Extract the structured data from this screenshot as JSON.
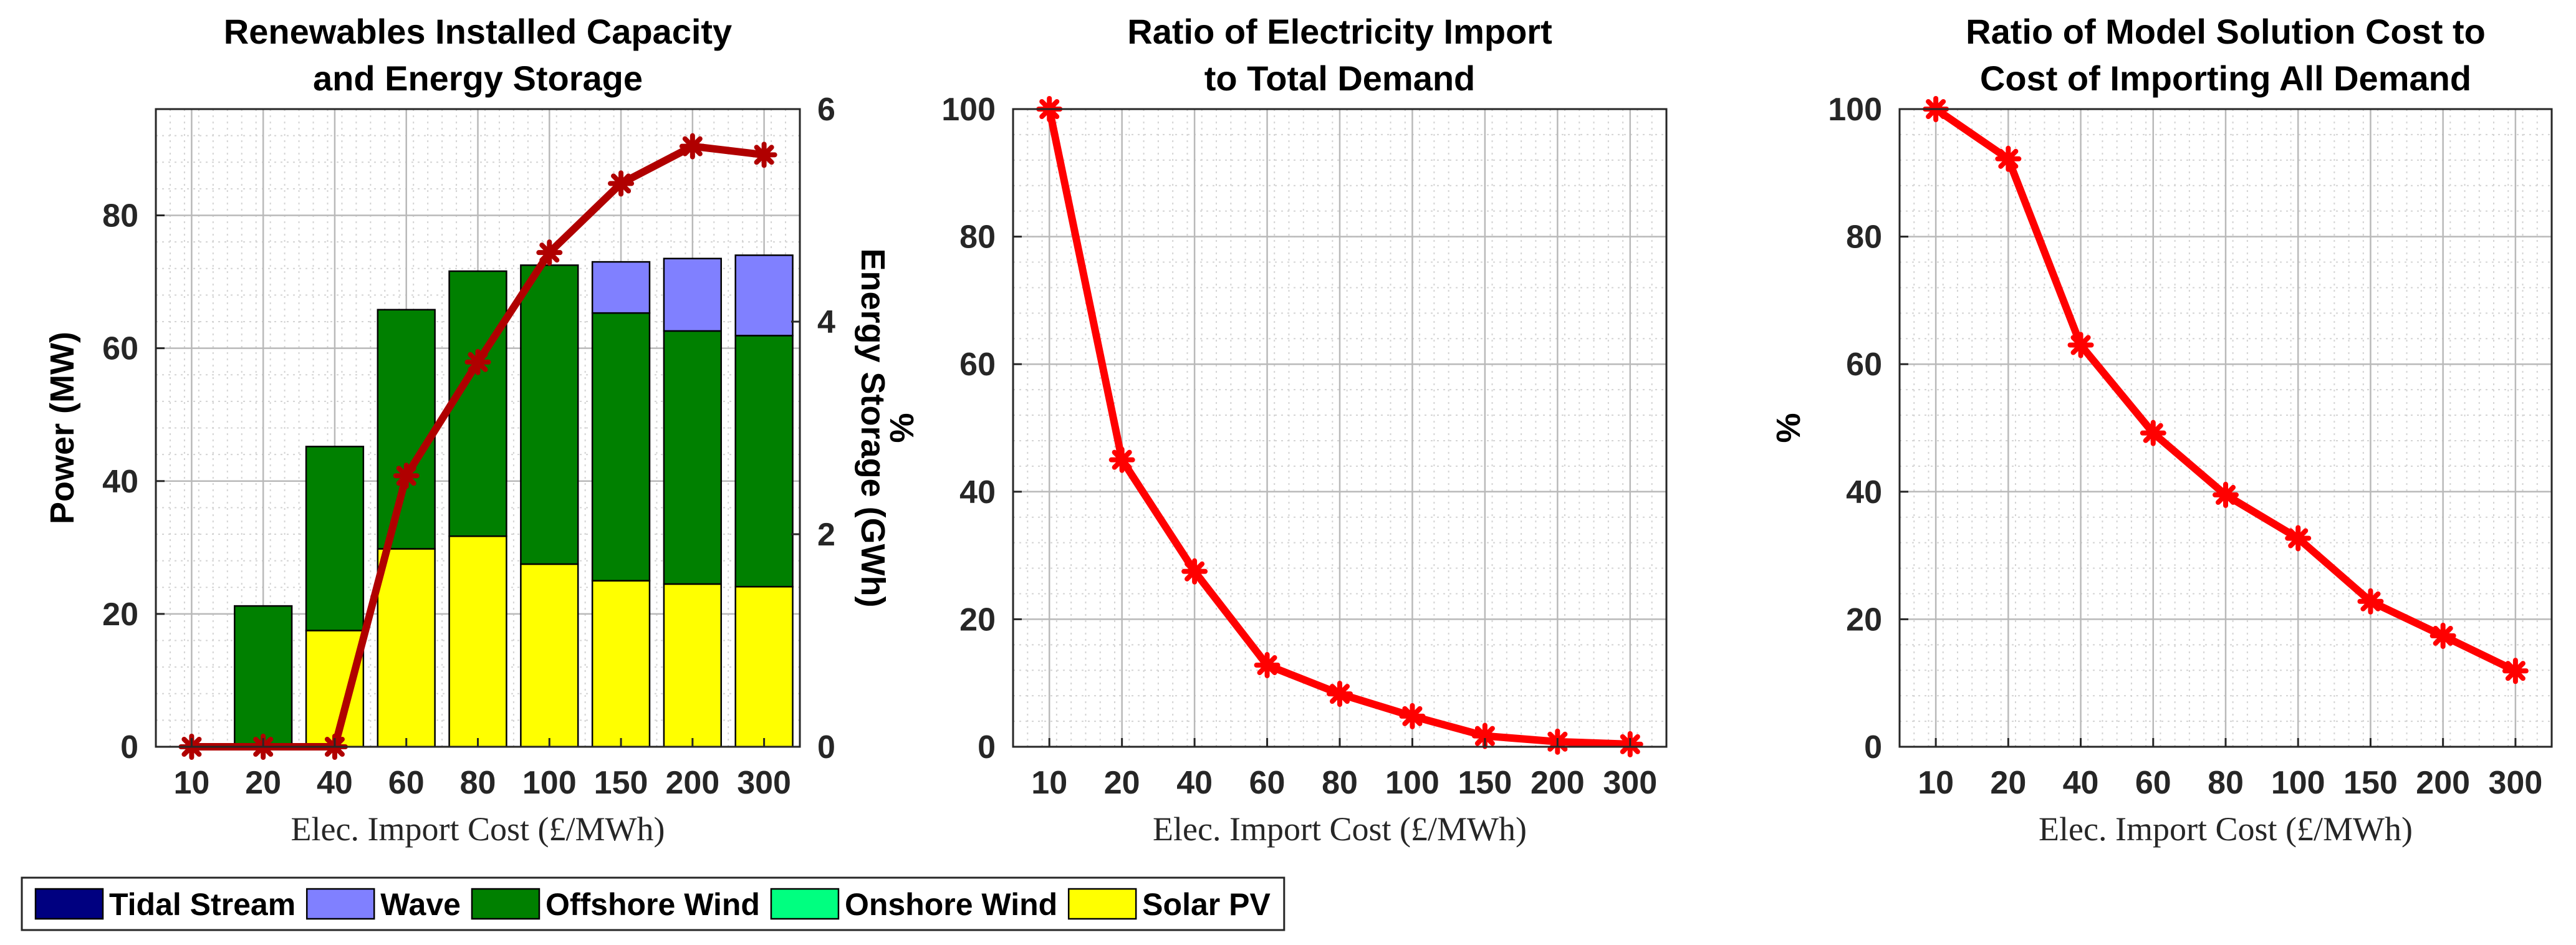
{
  "chart_data": [
    {
      "type": "bar",
      "stacked": true,
      "title": [
        "Renewables Installed Capacity",
        "and Energy Storage"
      ],
      "xlabel": "Elec. Import Cost (£/MWh)",
      "ylabel": "Power (MW)",
      "ylabel_right": "Energy Storage (GWh)",
      "categories": [
        "10",
        "20",
        "40",
        "60",
        "80",
        "100",
        "150",
        "200",
        "300"
      ],
      "ylim": [
        0,
        96
      ],
      "yticks": [
        0,
        20,
        40,
        60,
        80
      ],
      "ylim_right": [
        0,
        6
      ],
      "yticks_right": [
        0,
        2,
        4,
        6
      ],
      "grid": true,
      "series": [
        {
          "name": "Tidal Stream",
          "color": "#000080",
          "values": [
            0,
            0,
            0,
            0,
            0,
            0,
            0,
            0,
            0
          ]
        },
        {
          "name": "Onshore Wind",
          "color": "#00ff80",
          "values": [
            0,
            0,
            0,
            0,
            0,
            0,
            0,
            0,
            0
          ]
        },
        {
          "name": "Solar PV",
          "color": "#ffff00",
          "values": [
            0,
            0,
            17.5,
            29.8,
            31.7,
            27.5,
            25.0,
            24.5,
            24.1
          ]
        },
        {
          "name": "Offshore Wind",
          "color": "#008000",
          "values": [
            0,
            21.2,
            27.7,
            36.0,
            39.9,
            45.0,
            40.3,
            38.1,
            37.8
          ]
        },
        {
          "name": "Wave",
          "color": "#8080ff",
          "values": [
            0,
            0,
            0,
            0,
            0,
            0,
            7.7,
            10.9,
            12.1
          ]
        }
      ],
      "line": {
        "name": "Energy Storage",
        "axis": "right",
        "color": "#b00000",
        "values": [
          0,
          0,
          0,
          2.55,
          3.62,
          4.65,
          5.3,
          5.65,
          5.57
        ]
      }
    },
    {
      "type": "line",
      "title": [
        "Ratio of Electricity Import",
        "to Total Demand"
      ],
      "xlabel": "Elec. Import Cost (£/MWh)",
      "ylabel": "%",
      "categories": [
        "10",
        "20",
        "40",
        "60",
        "80",
        "100",
        "150",
        "200",
        "300"
      ],
      "values": [
        100,
        45,
        27.5,
        12.8,
        8.3,
        4.8,
        1.7,
        0.8,
        0.4
      ],
      "ylim": [
        0,
        100
      ],
      "yticks": [
        0,
        20,
        40,
        60,
        80,
        100
      ],
      "color": "#ff0000",
      "grid": true
    },
    {
      "type": "line",
      "title": [
        "Ratio of Model Solution Cost to",
        "Cost of Importing All Demand"
      ],
      "xlabel": "Elec. Import Cost (£/MWh)",
      "ylabel": "%",
      "categories": [
        "10",
        "20",
        "40",
        "60",
        "80",
        "100",
        "150",
        "200",
        "300"
      ],
      "values": [
        100,
        92.2,
        63,
        49.2,
        39.5,
        32.7,
        22.8,
        17.4,
        11.9
      ],
      "ylim": [
        0,
        100
      ],
      "yticks": [
        0,
        20,
        40,
        60,
        80,
        100
      ],
      "color": "#ff0000",
      "grid": true
    }
  ],
  "legend": [
    {
      "label": "Tidal Stream",
      "color": "#000080"
    },
    {
      "label": "Wave",
      "color": "#8080ff"
    },
    {
      "label": "Offshore Wind",
      "color": "#008000"
    },
    {
      "label": "Onshore Wind",
      "color": "#00ff80"
    },
    {
      "label": "Solar PV",
      "color": "#ffff00"
    }
  ]
}
